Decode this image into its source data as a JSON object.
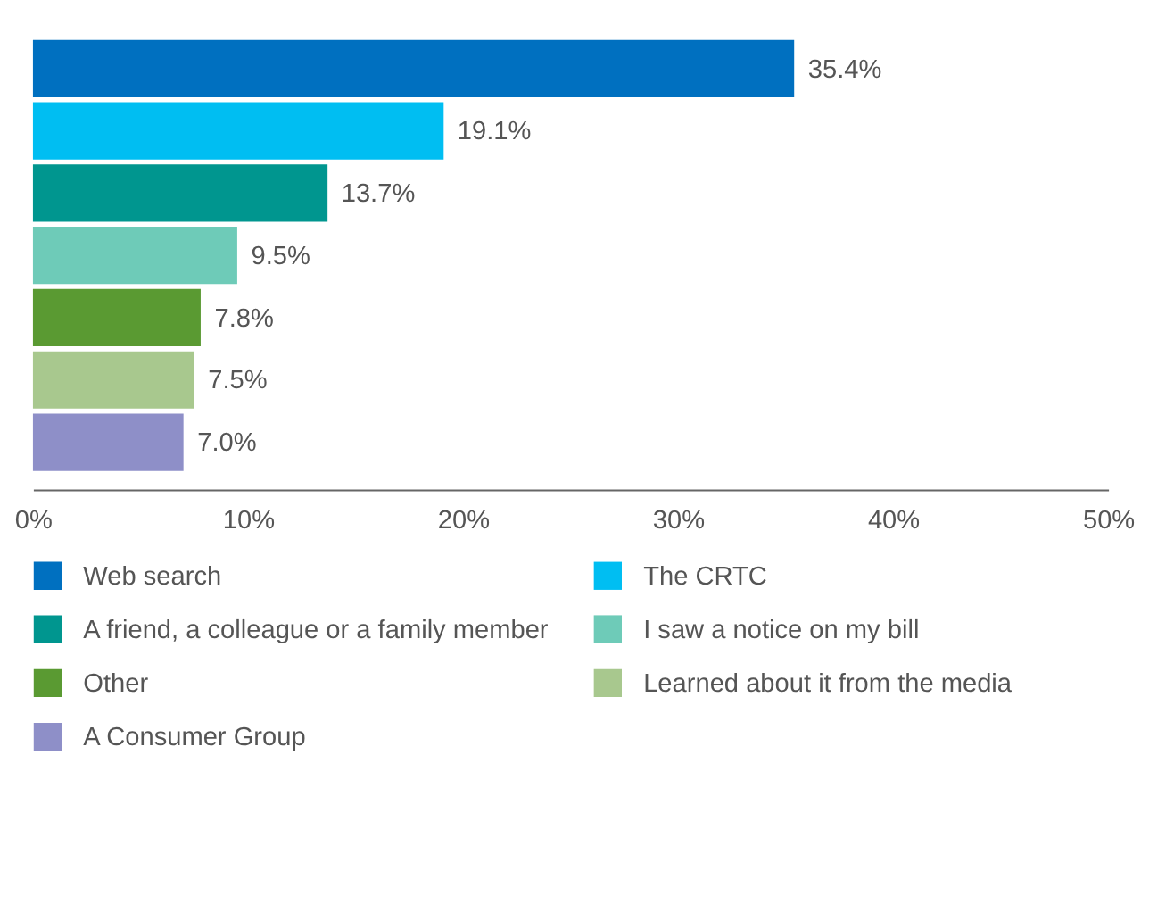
{
  "chart_data": {
    "type": "bar",
    "orientation": "horizontal",
    "categories": [
      null,
      null,
      null,
      null,
      null,
      null,
      null
    ],
    "series": [
      {
        "name": "Web search",
        "color": "#0070c0",
        "values": [
          35.4,
          null,
          null,
          null,
          null,
          null,
          null
        ],
        "value_labels": [
          "35.4%",
          null,
          null,
          null,
          null,
          null,
          null
        ]
      },
      {
        "name": "The CRTC",
        "color": "#00bef2",
        "values": [
          null,
          19.1,
          null,
          null,
          null,
          null,
          null
        ],
        "value_labels": [
          null,
          "19.1%",
          null,
          null,
          null,
          null,
          null
        ]
      },
      {
        "name": "A friend, a colleague or a family member",
        "color": "#00968f",
        "values": [
          null,
          null,
          13.7,
          null,
          null,
          null,
          null
        ],
        "value_labels": [
          null,
          null,
          "13.7%",
          null,
          null,
          null,
          null
        ]
      },
      {
        "name": "I saw a notice on my bill",
        "color": "#6ecbb8",
        "values": [
          null,
          null,
          null,
          9.5,
          null,
          null,
          null
        ],
        "value_labels": [
          null,
          null,
          null,
          "9.5%",
          null,
          null,
          null
        ]
      },
      {
        "name": "Other",
        "color": "#5a9a32",
        "values": [
          null,
          null,
          null,
          null,
          7.8,
          null,
          null
        ],
        "value_labels": [
          null,
          null,
          null,
          null,
          "7.8%",
          null,
          null
        ]
      },
      {
        "name": "Learned about it from the media",
        "color": "#a8c88e",
        "values": [
          null,
          null,
          null,
          null,
          null,
          7.5,
          null
        ],
        "value_labels": [
          null,
          null,
          null,
          null,
          null,
          "7.5%",
          null
        ]
      },
      {
        "name": "A Consumer Group",
        "color": "#8e8fc8",
        "values": [
          null,
          null,
          null,
          null,
          null,
          null,
          7.0
        ],
        "value_labels": [
          null,
          null,
          null,
          null,
          null,
          null,
          "7.0%"
        ]
      }
    ],
    "xlim": [
      0,
      50
    ],
    "xticks": [
      {
        "value": 0,
        "label": "0%"
      },
      {
        "value": 10,
        "label": "10%"
      },
      {
        "value": 20,
        "label": "20%"
      },
      {
        "value": 30,
        "label": "30%"
      },
      {
        "value": 40,
        "label": "40%"
      },
      {
        "value": 50,
        "label": "50%"
      }
    ],
    "stacked": true,
    "grid": false,
    "legend": "bottom"
  }
}
